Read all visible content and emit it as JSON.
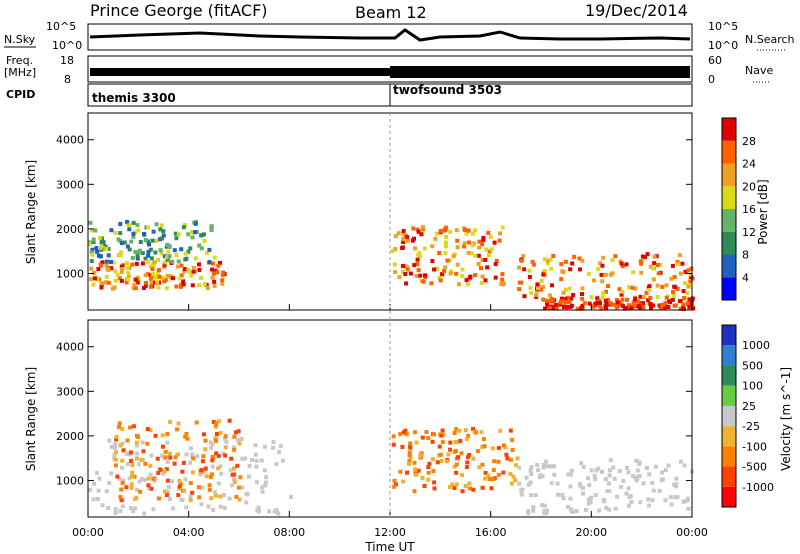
{
  "header": {
    "title": "Prince George (fitACF)",
    "beam": "Beam 12",
    "date": "19/Dec/2014"
  },
  "summary": {
    "nsky_label": "N.Sky",
    "nsky_ticks": [
      "10^5",
      "10^0"
    ],
    "nsearch_label": "N.Search",
    "nsearch_ticks": [
      "10^5",
      "10^0"
    ],
    "freq_label": "Freq.",
    "freq_unit": "[MHz]",
    "freq_ticks": [
      "18",
      "8"
    ],
    "nave_label": "Nave",
    "nave_ticks": [
      "60",
      "0"
    ],
    "cpid_label": "CPID",
    "cpid_modes": [
      {
        "name": "themis 3300",
        "start_hour": 0
      },
      {
        "name": "twofsound 3503",
        "start_hour": 12
      }
    ]
  },
  "chart_data": [
    {
      "type": "heatmap",
      "panel": "power",
      "xlabel": "",
      "ylabel": "Slant Range [km]",
      "xlim": [
        0,
        24
      ],
      "ylim": [
        180,
        4600
      ],
      "y_ticks": [
        1000,
        2000,
        3000,
        4000
      ],
      "colorbar": {
        "label": "Power [dB]",
        "ticks": [
          "4",
          "8",
          "12",
          "16",
          "20",
          "24",
          "28"
        ],
        "colors": [
          "#0000ff",
          "#2060c0",
          "#2e8b57",
          "#66b266",
          "#dada1a",
          "#f0a020",
          "#ff6000",
          "#e00000"
        ]
      },
      "regions": [
        {
          "t0": 0.0,
          "t1": 5.5,
          "r0": 700,
          "r1": 1300,
          "level": "high"
        },
        {
          "t0": 0.0,
          "t1": 5.0,
          "r0": 1300,
          "r1": 2200,
          "level": "medium"
        },
        {
          "t0": 12.0,
          "t1": 16.5,
          "r0": 800,
          "r1": 2100,
          "level": "high"
        },
        {
          "t0": 17.0,
          "t1": 24.0,
          "r0": 500,
          "r1": 1500,
          "level": "high"
        },
        {
          "t0": 18.0,
          "t1": 24.0,
          "r0": 250,
          "r1": 500,
          "level": "very high"
        }
      ]
    },
    {
      "type": "heatmap",
      "panel": "velocity",
      "xlabel": "Time UT",
      "ylabel": "Slant Range [km]",
      "xlim": [
        0,
        24
      ],
      "ylim": [
        180,
        4600
      ],
      "y_ticks": [
        1000,
        2000,
        3000,
        4000
      ],
      "x_tick_labels": [
        "00:00",
        "04:00",
        "08:00",
        "12:00",
        "16:00",
        "20:00",
        "00:00"
      ],
      "colorbar": {
        "label": "Velocity [m s^-1]",
        "ticks": [
          "1000",
          "500",
          "100",
          "25",
          "-25",
          "-100",
          "-500",
          "-1000"
        ],
        "colors": [
          "#2030c0",
          "#3080d0",
          "#2e8b57",
          "#66cc44",
          "#c8c8c8",
          "#f0b030",
          "#ff8000",
          "#ff4000",
          "#ff0000"
        ]
      },
      "regions": [
        {
          "t0": 0.0,
          "t1": 8.0,
          "r0": 300,
          "r1": 2000,
          "level": "ground scatter"
        },
        {
          "t0": 1.0,
          "t1": 6.0,
          "r0": 600,
          "r1": 2400,
          "level": "negative"
        },
        {
          "t0": 12.0,
          "t1": 17.0,
          "r0": 800,
          "r1": 2200,
          "level": "negative"
        },
        {
          "t0": 17.0,
          "t1": 24.0,
          "r0": 300,
          "r1": 1500,
          "level": "ground scatter"
        }
      ]
    }
  ]
}
